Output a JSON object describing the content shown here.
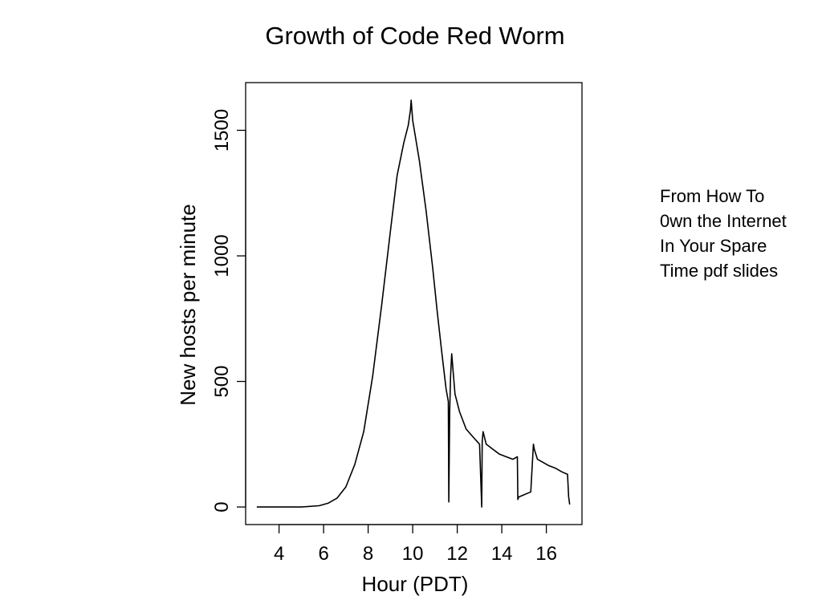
{
  "chart_data": {
    "type": "line",
    "title": "Growth of Code Red Worm",
    "xlabel": "Hour (PDT)",
    "ylabel": "New hosts per minute",
    "xlim": [
      2.5,
      17.6
    ],
    "ylim": [
      -70,
      1690
    ],
    "x_ticks": [
      4,
      6,
      8,
      10,
      12,
      14,
      16
    ],
    "y_ticks": [
      0,
      500,
      1000,
      1500
    ],
    "grid": false,
    "legend": "none",
    "line_color": "#000000",
    "series": [
      {
        "x": [
          3.0,
          5.0,
          5.8,
          6.2,
          6.6,
          7.0,
          7.4,
          7.8,
          8.2,
          8.6,
          9.0,
          9.3,
          9.6,
          9.8,
          9.9,
          9.93,
          10.0,
          10.3,
          10.6,
          10.9,
          11.1,
          11.3,
          11.5,
          11.6,
          11.62,
          11.66,
          11.7,
          11.75,
          11.9,
          12.1,
          12.4,
          12.8,
          13.0,
          13.1,
          13.12,
          13.16,
          13.3,
          13.6,
          13.9,
          14.2,
          14.5,
          14.7,
          14.72,
          14.76,
          14.9,
          15.3,
          15.42,
          15.46,
          15.6,
          15.8,
          16.1,
          16.4,
          16.7,
          16.95,
          17.0,
          17.05
        ],
        "y": [
          0,
          0,
          5,
          15,
          35,
          80,
          170,
          300,
          520,
          800,
          1100,
          1320,
          1450,
          1520,
          1580,
          1620,
          1540,
          1380,
          1180,
          950,
          780,
          620,
          470,
          420,
          20,
          380,
          520,
          610,
          450,
          380,
          310,
          270,
          250,
          0,
          260,
          300,
          250,
          230,
          210,
          200,
          190,
          200,
          30,
          40,
          45,
          60,
          250,
          230,
          190,
          180,
          165,
          155,
          140,
          130,
          40,
          10
        ]
      }
    ]
  },
  "caption": "From How To 0wn the Internet In Your Spare Time pdf slides"
}
